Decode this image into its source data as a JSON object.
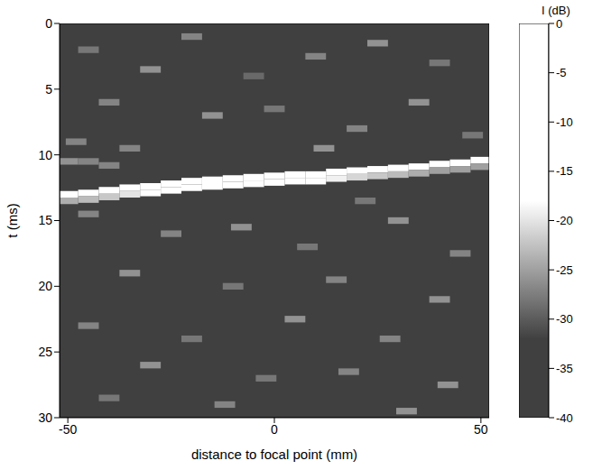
{
  "chart_data": {
    "type": "heatmap",
    "x_label": "distance to focal point (mm)",
    "y_label": "t (ms)",
    "xlim": [
      -52,
      52
    ],
    "xticks": [
      -50,
      0,
      50
    ],
    "ylim": [
      30,
      0
    ],
    "yticks": [
      0,
      5,
      10,
      15,
      20,
      25,
      30
    ],
    "cell_width": 5,
    "cell_height": 0.5,
    "cells": [
      {
        "x": -50,
        "t": 13.0,
        "value": -16
      },
      {
        "x": -45,
        "t": 12.9,
        "value": -14
      },
      {
        "x": -40,
        "t": 12.7,
        "value": -12
      },
      {
        "x": -35,
        "t": 12.5,
        "value": -10
      },
      {
        "x": -30,
        "t": 12.4,
        "value": -8
      },
      {
        "x": -25,
        "t": 12.2,
        "value": -6
      },
      {
        "x": -20,
        "t": 12.0,
        "value": -4
      },
      {
        "x": -15,
        "t": 11.9,
        "value": -2
      },
      {
        "x": -10,
        "t": 11.8,
        "value": 0
      },
      {
        "x": -5,
        "t": 11.7,
        "value": 0
      },
      {
        "x": 0,
        "t": 11.6,
        "value": 0
      },
      {
        "x": 5,
        "t": 11.5,
        "value": -3
      },
      {
        "x": 10,
        "t": 11.5,
        "value": -6
      },
      {
        "x": 15,
        "t": 11.3,
        "value": -9
      },
      {
        "x": 20,
        "t": 11.2,
        "value": -12
      },
      {
        "x": 25,
        "t": 11.1,
        "value": -14
      },
      {
        "x": 30,
        "t": 11.0,
        "value": -15
      },
      {
        "x": 35,
        "t": 10.9,
        "value": -16
      },
      {
        "x": 40,
        "t": 10.7,
        "value": -17
      },
      {
        "x": 45,
        "t": 10.6,
        "value": -18
      },
      {
        "x": 50,
        "t": 10.4,
        "value": -18
      },
      {
        "x": -50,
        "t": 13.5,
        "value": -24
      },
      {
        "x": -45,
        "t": 13.4,
        "value": -23
      },
      {
        "x": -40,
        "t": 13.2,
        "value": -22
      },
      {
        "x": -35,
        "t": 13.0,
        "value": -20
      },
      {
        "x": -30,
        "t": 12.9,
        "value": -18
      },
      {
        "x": -25,
        "t": 12.7,
        "value": -16
      },
      {
        "x": -20,
        "t": 12.5,
        "value": -14
      },
      {
        "x": -15,
        "t": 12.4,
        "value": -12
      },
      {
        "x": -10,
        "t": 12.3,
        "value": -10
      },
      {
        "x": -5,
        "t": 12.2,
        "value": -10
      },
      {
        "x": 0,
        "t": 12.1,
        "value": -10
      },
      {
        "x": 5,
        "t": 12.0,
        "value": -13
      },
      {
        "x": 10,
        "t": 12.0,
        "value": -16
      },
      {
        "x": 15,
        "t": 11.8,
        "value": -19
      },
      {
        "x": 20,
        "t": 11.7,
        "value": -21
      },
      {
        "x": 25,
        "t": 11.6,
        "value": -22
      },
      {
        "x": 30,
        "t": 11.5,
        "value": -23
      },
      {
        "x": 35,
        "t": 11.4,
        "value": -24
      },
      {
        "x": 40,
        "t": 11.2,
        "value": -25
      },
      {
        "x": 45,
        "t": 11.1,
        "value": -25
      },
      {
        "x": 50,
        "t": 10.9,
        "value": -25
      },
      {
        "x": -50,
        "t": 10.5,
        "value": -26
      },
      {
        "x": -45,
        "t": 10.5,
        "value": -27
      },
      {
        "x": -40,
        "t": 10.8,
        "value": -27
      },
      {
        "x": -45,
        "t": 2,
        "value": -28
      },
      {
        "x": -30,
        "t": 3.5,
        "value": -26
      },
      {
        "x": -20,
        "t": 1,
        "value": -27
      },
      {
        "x": -5,
        "t": 4,
        "value": -29
      },
      {
        "x": 10,
        "t": 2.5,
        "value": -27
      },
      {
        "x": 25,
        "t": 1.5,
        "value": -26
      },
      {
        "x": 40,
        "t": 3,
        "value": -28
      },
      {
        "x": -40,
        "t": 6,
        "value": -27
      },
      {
        "x": -15,
        "t": 7,
        "value": -26
      },
      {
        "x": 0,
        "t": 6.5,
        "value": -28
      },
      {
        "x": 20,
        "t": 8,
        "value": -27
      },
      {
        "x": 35,
        "t": 6,
        "value": -26
      },
      {
        "x": 48,
        "t": 8.5,
        "value": -28
      },
      {
        "x": -48,
        "t": 9,
        "value": -27
      },
      {
        "x": -25,
        "t": 16,
        "value": -27
      },
      {
        "x": -8,
        "t": 15.5,
        "value": -26
      },
      {
        "x": 8,
        "t": 17,
        "value": -28
      },
      {
        "x": 30,
        "t": 15,
        "value": -26
      },
      {
        "x": 45,
        "t": 17.5,
        "value": -27
      },
      {
        "x": -35,
        "t": 19,
        "value": -26
      },
      {
        "x": -10,
        "t": 20,
        "value": -28
      },
      {
        "x": 15,
        "t": 19.5,
        "value": -27
      },
      {
        "x": 40,
        "t": 21,
        "value": -26
      },
      {
        "x": -45,
        "t": 23,
        "value": -27
      },
      {
        "x": -20,
        "t": 24,
        "value": -28
      },
      {
        "x": 5,
        "t": 22.5,
        "value": -26
      },
      {
        "x": 28,
        "t": 24,
        "value": -27
      },
      {
        "x": -30,
        "t": 26,
        "value": -26
      },
      {
        "x": -2,
        "t": 27,
        "value": -28
      },
      {
        "x": 18,
        "t": 26.5,
        "value": -27
      },
      {
        "x": 42,
        "t": 27.5,
        "value": -26
      },
      {
        "x": -40,
        "t": 28.5,
        "value": -28
      },
      {
        "x": -12,
        "t": 29,
        "value": -27
      },
      {
        "x": 32,
        "t": 29.5,
        "value": -26
      },
      {
        "x": -45,
        "t": 14.5,
        "value": -27
      },
      {
        "x": 22,
        "t": 13.5,
        "value": -28
      },
      {
        "x": -35,
        "t": 9.5,
        "value": -27
      },
      {
        "x": 12,
        "t": 9.5,
        "value": -26
      }
    ],
    "colorbar": {
      "label": "I (dB)",
      "lim": [
        -40,
        0
      ],
      "ticks": [
        0,
        -5,
        -10,
        -15,
        -20,
        -25,
        -30,
        -35,
        -40
      ]
    }
  }
}
